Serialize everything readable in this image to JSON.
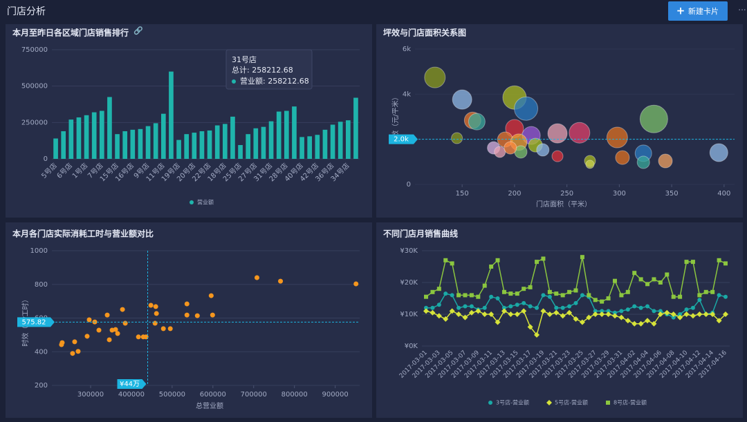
{
  "header": {
    "title": "门店分析",
    "button": "新建卡片"
  },
  "chart_data": [
    {
      "type": "bar",
      "title": "本月至昨日各区域门店销售排行",
      "categories": [
        "5号店",
        null,
        "6号店",
        null,
        "1号店",
        null,
        "7号店",
        null,
        "15号店",
        null,
        "16号店",
        null,
        "9号店",
        null,
        "11号店",
        null,
        "19号店",
        null,
        "20号店",
        null,
        "22号店",
        null,
        "18号店",
        null,
        "25号店",
        null,
        "27号店",
        null,
        "31号店",
        null,
        "28号店",
        null,
        "40号店",
        null,
        "42号店",
        null,
        "36号店",
        null,
        "34号店",
        null
      ],
      "series": [
        {
          "name": "营业额",
          "color": "#1fb5ac",
          "values": [
            140000,
            190000,
            270000,
            285000,
            300000,
            320000,
            330000,
            425000,
            170000,
            190000,
            200000,
            205000,
            225000,
            245000,
            310000,
            600000,
            130000,
            170000,
            180000,
            190000,
            195000,
            230000,
            240000,
            290000,
            95000,
            170000,
            210000,
            220000,
            258212.68,
            325000,
            330000,
            360000,
            150000,
            155000,
            165000,
            200000,
            235000,
            255000,
            265000,
            420000
          ]
        }
      ],
      "ylim": [
        0,
        750000
      ],
      "yticks": [
        0,
        250000,
        500000,
        750000
      ],
      "grid": true,
      "legend": "bottom",
      "tooltip": {
        "title": "31号店",
        "total": "总计: 258212.68",
        "series": "营业额: 258212.68"
      }
    },
    {
      "type": "bubble",
      "title": "坪效与门店面积关系图",
      "x_label": "门店面积（平米）",
      "y_label": "坪效（元/平米）",
      "x": [
        124,
        150,
        160,
        164,
        145,
        200,
        211,
        333,
        200,
        216,
        241,
        262,
        298,
        191,
        204,
        220,
        180,
        186,
        206,
        196,
        227,
        241,
        272,
        272,
        303,
        323,
        323,
        344,
        395
      ],
      "values": [
        4740,
        3760,
        2840,
        2780,
        2050,
        3850,
        3360,
        2900,
        2480,
        2170,
        2260,
        2290,
        2080,
        1990,
        1870,
        1740,
        1620,
        1440,
        1440,
        1620,
        1530,
        1250,
        1040,
        890,
        1190,
        1380,
        980,
        1040,
        1410
      ],
      "sizes": [
        15,
        14,
        12,
        12,
        8,
        17,
        17,
        20,
        13,
        13,
        14,
        15,
        15,
        11,
        12,
        10,
        9,
        8,
        9,
        9,
        9,
        8,
        8,
        6,
        10,
        12,
        9,
        10,
        13
      ],
      "colors": [
        "#8a9a1e",
        "#8fb8e6",
        "#e8762c",
        "#3aa89a",
        "#8a9a1e",
        "#a8b820",
        "#2a7ac0",
        "#7bbf6a",
        "#e0303a",
        "#9a5ad8",
        "#e8a0b0",
        "#e0406a",
        "#e07020",
        "#e8762c",
        "#f0a030",
        "#a8c020",
        "#d8b0e0",
        "#e8a0b0",
        "#7bbf6a",
        "#ff8a40",
        "#8fb8e6",
        "#e0303a",
        "#a8b820",
        "#c8d050",
        "#e07020",
        "#2a7ac0",
        "#3aa89a",
        "#f0a060",
        "#8fb8e6"
      ],
      "xlim": [
        105,
        410
      ],
      "xticks": [
        150,
        200,
        250,
        300,
        350,
        400
      ],
      "ylim": [
        0,
        6000
      ],
      "yticks": [
        0,
        {
          "value": 2000,
          "label": "2k"
        },
        {
          "value": 4000,
          "label": "4k"
        },
        {
          "value": 6000,
          "label": "6k"
        }
      ],
      "hline": {
        "value": 2000,
        "label": "2.0k"
      }
    },
    {
      "type": "scatter",
      "title": "本月各门店实际消耗工时与营业额对比",
      "x_label": "总营业额",
      "y_label": "时效（元/工时）",
      "color": "#f5961e",
      "x": [
        228600,
        230300,
        255800,
        260900,
        269400,
        291500,
        296600,
        310200,
        320400,
        340800,
        345900,
        352700,
        361200,
        366300,
        378200,
        385000,
        417300,
        429200,
        436000,
        447900,
        458100,
        459800,
        461500,
        478500,
        495500,
        536300,
        536300,
        561800,
        595800,
        599200,
        708000,
        765800,
        951000
      ],
      "values": [
        442,
        454,
        390,
        459,
        402,
        492,
        590,
        577,
        528,
        618,
        471,
        528,
        532,
        508,
        651,
        569,
        488,
        488,
        488,
        676,
        569,
        668,
        627,
        537,
        537,
        684,
        618,
        614,
        733,
        618,
        840,
        819,
        803
      ],
      "xlim": [
        205000,
        960000
      ],
      "xticks": [
        300000,
        400000,
        500000,
        600000,
        700000,
        800000,
        900000
      ],
      "ylim": [
        200,
        1000
      ],
      "yticks": [
        200,
        400,
        600,
        800,
        1000
      ],
      "grid": true,
      "hline": 575.82,
      "vline": {
        "value": 440000,
        "label": "¥44万"
      }
    },
    {
      "type": "line",
      "title": "不同门店月销售曲线",
      "categories": [
        "2017-03-01",
        null,
        "2017-03-03",
        null,
        "2017-03-05",
        null,
        "2017-03-07",
        null,
        "2017-03-09",
        null,
        "2017-03-11",
        null,
        "2017-03-13",
        null,
        "2017-03-15",
        null,
        "2017-03-17",
        null,
        "2017-03-19",
        null,
        "2017-03-21",
        null,
        "2017-03-23",
        null,
        "2017-03-25",
        null,
        "2017-03-27",
        null,
        "2017-03-29",
        null,
        "2017-03-31",
        null,
        "2017-04-02",
        null,
        "2017-04-04",
        null,
        "2017-04-06",
        null,
        "2017-04-08",
        null,
        "2017-04-10",
        null,
        "2017-04-12",
        null,
        "2017-04-14",
        null,
        "2017-04-16"
      ],
      "series": [
        {
          "name": "3号店-营业额",
          "color": "#1aa9a6",
          "marker": "circle",
          "values": [
            12000,
            12000,
            13000,
            16500,
            16000,
            12000,
            12500,
            12500,
            11500,
            12000,
            15500,
            15000,
            12000,
            12500,
            13000,
            13500,
            12500,
            12000,
            16000,
            15500,
            12000,
            12000,
            12500,
            13500,
            16000,
            15500,
            11000,
            11000,
            11000,
            10500,
            11000,
            11500,
            12500,
            12000,
            12500,
            11000,
            11000,
            10000,
            9000,
            10000,
            11500,
            12000,
            14500,
            10000,
            10500,
            16000,
            15500
          ]
        },
        {
          "name": "5号店-营业额",
          "color": "#d6e33a",
          "marker": "diamond",
          "values": [
            11000,
            10500,
            9500,
            8500,
            11000,
            10000,
            9000,
            10500,
            11000,
            10000,
            10000,
            7500,
            11000,
            10000,
            10000,
            11000,
            6000,
            3500,
            11000,
            10000,
            10500,
            9500,
            10500,
            8500,
            7500,
            9000,
            10000,
            10000,
            10000,
            9500,
            9000,
            8000,
            7000,
            7000,
            8000,
            7000,
            10000,
            10500,
            10000,
            9000,
            10000,
            9500,
            10000,
            10000,
            10000,
            8000,
            10000
          ]
        },
        {
          "name": "8号店-营业额",
          "color": "#8bc63f",
          "marker": "square",
          "values": [
            15500,
            17000,
            18000,
            27000,
            26000,
            16000,
            16000,
            16000,
            15500,
            19000,
            25000,
            27000,
            17000,
            16500,
            16500,
            18000,
            18500,
            26500,
            27500,
            17000,
            16500,
            16000,
            17000,
            17500,
            28000,
            16000,
            14500,
            14000,
            15000,
            20500,
            16000,
            17000,
            23000,
            21000,
            19500,
            21000,
            20000,
            22500,
            15500,
            15500,
            26500,
            26500,
            16000,
            17000,
            17000,
            27000,
            26000
          ]
        }
      ],
      "ylim": [
        0,
        30000
      ],
      "yticks": [
        {
          "value": 0,
          "label": "¥0K"
        },
        {
          "value": 10000,
          "label": "¥10K"
        },
        {
          "value": 20000,
          "label": "¥20K"
        },
        {
          "value": 30000,
          "label": "¥30K"
        }
      ],
      "grid": true,
      "legend": "bottom"
    }
  ]
}
